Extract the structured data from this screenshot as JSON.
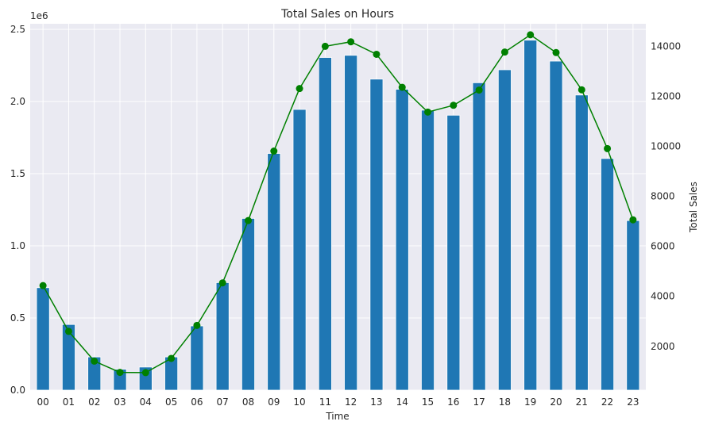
{
  "chart_data": {
    "type": "bar",
    "title": "Total Sales on Hours",
    "xlabel": "Time",
    "ylabel": "",
    "y2label": "Total Sales",
    "y_offset_label": "1e6",
    "categories": [
      "00",
      "01",
      "02",
      "03",
      "04",
      "05",
      "06",
      "07",
      "08",
      "09",
      "10",
      "11",
      "12",
      "13",
      "14",
      "15",
      "16",
      "17",
      "18",
      "19",
      "20",
      "21",
      "22",
      "23"
    ],
    "ylim": [
      0,
      2500000
    ],
    "y_ticks": [
      0,
      500000,
      1000000,
      1500000,
      2000000,
      2500000
    ],
    "y_tick_labels": [
      "0.0",
      "0.5",
      "1.0",
      "1.5",
      "2.0",
      "2.5"
    ],
    "y2lim": [
      250,
      14900
    ],
    "y2_ticks": [
      2000,
      4000,
      6000,
      8000,
      10000,
      12000,
      14000
    ],
    "y2_tick_labels": [
      "2000",
      "4000",
      "6000",
      "8000",
      "10000",
      "12000",
      "14000"
    ],
    "grid": true,
    "series": [
      {
        "kind": "bar",
        "axis": "left",
        "color": "#1f77b4",
        "values": [
          710000,
          455000,
          230000,
          145000,
          160000,
          230000,
          445000,
          745000,
          1190000,
          1640000,
          1945000,
          2305000,
          2320000,
          2155000,
          2085000,
          1940000,
          1905000,
          2130000,
          2220000,
          2425000,
          2280000,
          2045000,
          1605000,
          1175000
        ]
      },
      {
        "kind": "line",
        "axis": "right",
        "color": "#008000",
        "marker": "circle",
        "values": [
          4430,
          2600,
          1410,
          960,
          950,
          1520,
          2840,
          4540,
          7030,
          9810,
          12310,
          14000,
          14180,
          13680,
          12360,
          11370,
          11640,
          12250,
          13770,
          14460,
          13750,
          12260,
          9910,
          7060
        ]
      }
    ]
  }
}
